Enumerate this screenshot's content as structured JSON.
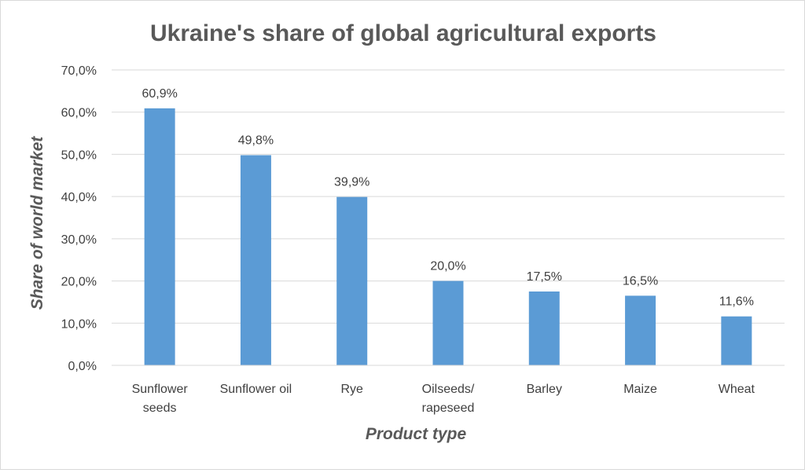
{
  "chart_data": {
    "type": "bar",
    "title": "Ukraine's share of global agricultural exports",
    "xlabel": "Product type",
    "ylabel": "Share of world market",
    "categories": [
      [
        "Sunflower",
        "seeds"
      ],
      [
        "Sunflower oil"
      ],
      [
        "Rye"
      ],
      [
        "Oilseeds/",
        "rapeseed"
      ],
      [
        "Barley"
      ],
      [
        "Maize"
      ],
      [
        "Wheat"
      ]
    ],
    "values": [
      60.9,
      49.8,
      39.9,
      20.0,
      17.5,
      16.5,
      11.6
    ],
    "data_labels": [
      "60,9%",
      "49,8%",
      "39,9%",
      "20,0%",
      "17,5%",
      "16,5%",
      "11,6%"
    ],
    "ylim": [
      0,
      70
    ],
    "yticks": [
      0,
      10,
      20,
      30,
      40,
      50,
      60,
      70
    ],
    "ytick_labels": [
      "0,0%",
      "10,0%",
      "20,0%",
      "30,0%",
      "40,0%",
      "50,0%",
      "60,0%",
      "70,0%"
    ],
    "grid": true,
    "legend": "none",
    "colors": {
      "bar": "#5b9bd5",
      "grid": "#d9d9d9",
      "text": "#404040",
      "title": "#595959"
    }
  }
}
